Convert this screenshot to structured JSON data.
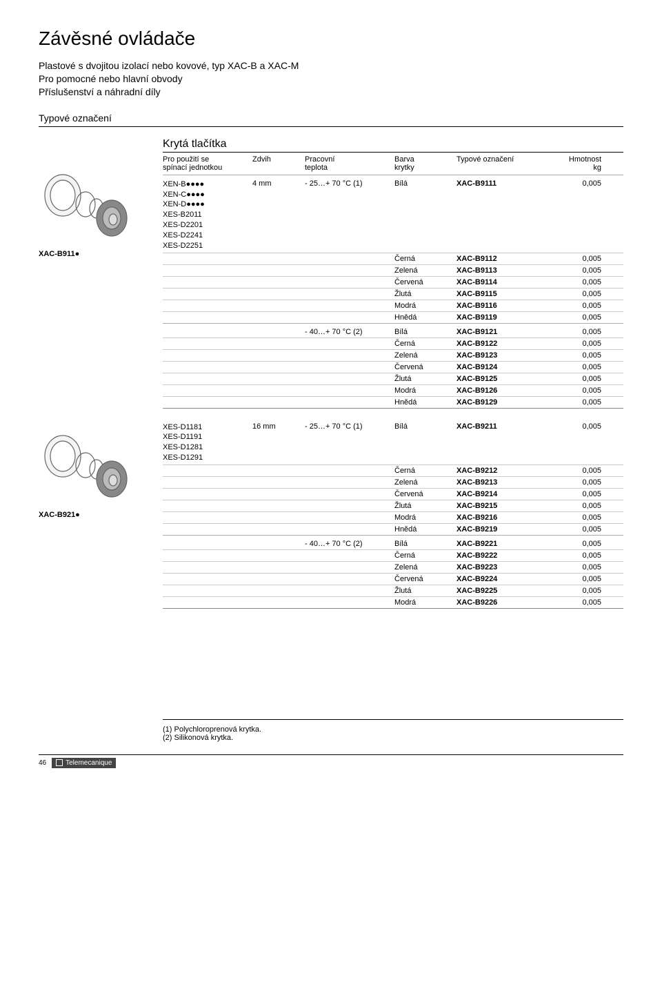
{
  "title": "Závěsné ovládače",
  "subtitle_lines": [
    "Plastové s dvojitou izolací nebo kovové, typ XAC-B a XAC-M",
    "Pro pomocné nebo hlavní obvody",
    "Příslušenství a náhradní díly"
  ],
  "product_type_label": "Typové označení",
  "section_head": "Krytá tlačítka",
  "header": {
    "col1_l1": "Pro použití se",
    "col1_l2": "spínací jednotkou",
    "col2": "Zdvih",
    "col3_l1": "Pracovní",
    "col3_l2": "teplota",
    "col4_l1": "Barva",
    "col4_l2": "krytky",
    "col5": "Typové označení",
    "col6_l1": "Hmotnost",
    "col6_l2": "kg"
  },
  "group1": {
    "caption": "XAC-B911●",
    "switch_units": [
      "XEN-B●●●●",
      "XEN-C●●●●",
      "XEN-D●●●●",
      "XES-B2011",
      "XES-D2201",
      "XES-D2241",
      "XES-D2251"
    ],
    "stroke": "4 mm",
    "variants": [
      {
        "temp": "- 25…+ 70 °C (1)",
        "rows": [
          {
            "color": "Bílá",
            "ref": "XAC-B9111",
            "wt": "0,005"
          },
          {
            "color": "Černá",
            "ref": "XAC-B9112",
            "wt": "0,005"
          },
          {
            "color": "Zelená",
            "ref": "XAC-B9113",
            "wt": "0,005"
          },
          {
            "color": "Červená",
            "ref": "XAC-B9114",
            "wt": "0,005"
          },
          {
            "color": "Žlutá",
            "ref": "XAC-B9115",
            "wt": "0,005"
          },
          {
            "color": "Modrá",
            "ref": "XAC-B9116",
            "wt": "0,005"
          },
          {
            "color": "Hnědá",
            "ref": "XAC-B9119",
            "wt": "0,005"
          }
        ]
      },
      {
        "temp": "- 40…+ 70 °C (2)",
        "rows": [
          {
            "color": "Bílá",
            "ref": "XAC-B9121",
            "wt": "0,005"
          },
          {
            "color": "Černá",
            "ref": "XAC-B9122",
            "wt": "0,005"
          },
          {
            "color": "Zelená",
            "ref": "XAC-B9123",
            "wt": "0,005"
          },
          {
            "color": "Červená",
            "ref": "XAC-B9124",
            "wt": "0,005"
          },
          {
            "color": "Žlutá",
            "ref": "XAC-B9125",
            "wt": "0,005"
          },
          {
            "color": "Modrá",
            "ref": "XAC-B9126",
            "wt": "0,005"
          },
          {
            "color": "Hnědá",
            "ref": "XAC-B9129",
            "wt": "0,005"
          }
        ]
      }
    ]
  },
  "group2": {
    "caption": "XAC-B921●",
    "switch_units": [
      "XES-D1181",
      "XES-D1191",
      "XES-D1281",
      "XES-D1291"
    ],
    "stroke": "16 mm",
    "variants": [
      {
        "temp": "- 25…+ 70 °C (1)",
        "rows": [
          {
            "color": "Bílá",
            "ref": "XAC-B9211",
            "wt": "0,005"
          },
          {
            "color": "Černá",
            "ref": "XAC-B9212",
            "wt": "0,005"
          },
          {
            "color": "Zelená",
            "ref": "XAC-B9213",
            "wt": "0,005"
          },
          {
            "color": "Červená",
            "ref": "XAC-B9214",
            "wt": "0,005"
          },
          {
            "color": "Žlutá",
            "ref": "XAC-B9215",
            "wt": "0,005"
          },
          {
            "color": "Modrá",
            "ref": "XAC-B9216",
            "wt": "0,005"
          },
          {
            "color": "Hnědá",
            "ref": "XAC-B9219",
            "wt": "0,005"
          }
        ]
      },
      {
        "temp": "- 40…+ 70 °C (2)",
        "rows": [
          {
            "color": "Bílá",
            "ref": "XAC-B9221",
            "wt": "0,005"
          },
          {
            "color": "Černá",
            "ref": "XAC-B9222",
            "wt": "0,005"
          },
          {
            "color": "Zelená",
            "ref": "XAC-B9223",
            "wt": "0,005"
          },
          {
            "color": "Červená",
            "ref": "XAC-B9224",
            "wt": "0,005"
          },
          {
            "color": "Žlutá",
            "ref": "XAC-B9225",
            "wt": "0,005"
          },
          {
            "color": "Modrá",
            "ref": "XAC-B9226",
            "wt": "0,005"
          }
        ]
      }
    ]
  },
  "footnotes": [
    "(1) Polychloroprenová krytka.",
    "(2) Silikonová krytka."
  ],
  "page_number": "46",
  "brand": "Telemecanique"
}
